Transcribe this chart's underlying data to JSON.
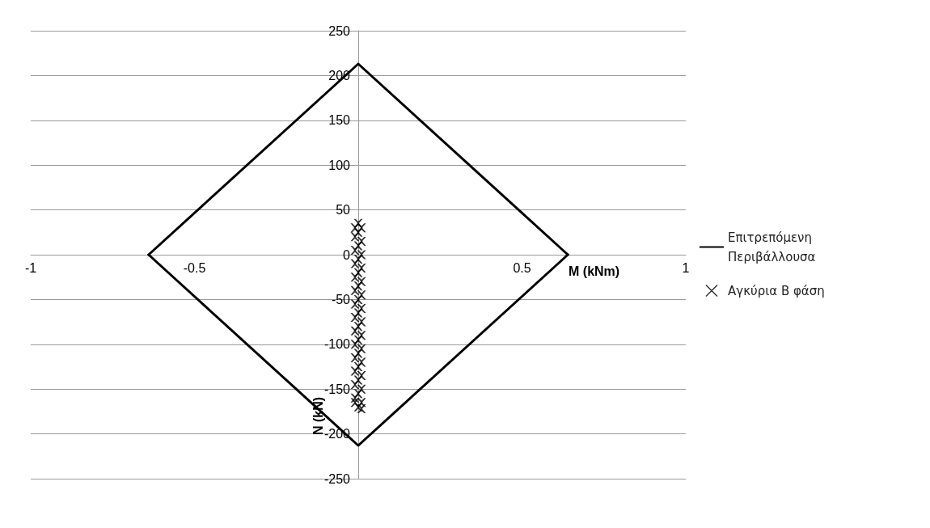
{
  "chart_data": {
    "type": "line",
    "xlabel": "M (kNm)",
    "ylabel": "N (kN)",
    "xlim": [
      -1,
      1
    ],
    "xticks": [
      -1,
      -0.5,
      0.5,
      1
    ],
    "ylim": [
      -250,
      250
    ],
    "yticks": [
      -250,
      -200,
      -150,
      -100,
      -50,
      0,
      50,
      100,
      150,
      200,
      250
    ],
    "grid": "y",
    "legend": "right",
    "marker": "cross",
    "series": [
      {
        "name": "Επιτρεπόμενη Περιβάλλουσα",
        "color": "#000000",
        "marker": "none",
        "line_style": "solid",
        "x": [
          -0.64,
          0,
          0.64
        ],
        "values": [
          0,
          213,
          0
        ]
      },
      {
        "color": "#000000",
        "marker": "none",
        "line_style": "solid",
        "x": [
          -0.64,
          0,
          0.64
        ],
        "values": [
          0,
          -213,
          0
        ]
      },
      {
        "name": "Αγκύρια Β φάση",
        "type": "scatter",
        "color": "#000000",
        "x": [
          0,
          -0.01,
          0.01,
          0,
          -0.01,
          0.01,
          0,
          -0.01,
          0.01,
          0,
          -0.01,
          0.01,
          0,
          -0.01,
          0.01,
          0,
          -0.01,
          0.01,
          0,
          -0.01,
          0.01,
          0,
          -0.01,
          0.01,
          0,
          -0.01,
          0.01,
          0,
          -0.01,
          0.01,
          0,
          -0.01,
          0.01,
          0,
          -0.01,
          0.01,
          0,
          -0.01,
          0.01,
          0,
          -0.01,
          0.01,
          0,
          -0.01,
          0.01
        ],
        "values": [
          35,
          30,
          30,
          25,
          20,
          15,
          10,
          5,
          0,
          -5,
          -10,
          -15,
          -20,
          -25,
          -30,
          -35,
          -40,
          -45,
          -50,
          -55,
          -60,
          -65,
          -70,
          -75,
          -80,
          -85,
          -90,
          -95,
          -100,
          -105,
          -110,
          -115,
          -120,
          -125,
          -130,
          -135,
          -140,
          -145,
          -150,
          -155,
          -160,
          -165,
          -170,
          -165,
          -172
        ]
      }
    ]
  }
}
